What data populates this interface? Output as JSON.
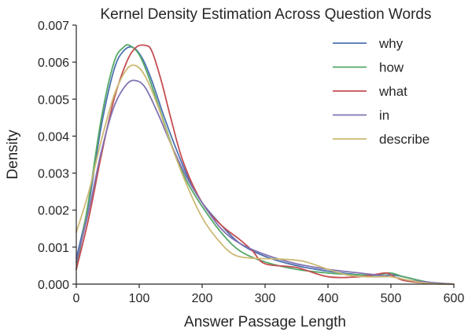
{
  "chart_data": {
    "type": "line",
    "title": "Kernel Density Estimation Across Question Words",
    "xlabel": "Answer Passage Length",
    "ylabel": "Density",
    "xlim": [
      0,
      600
    ],
    "ylim": [
      0,
      0.007
    ],
    "xticks": [
      "0",
      "100",
      "200",
      "300",
      "400",
      "500",
      "600"
    ],
    "yticks": [
      "0.000",
      "0.001",
      "0.002",
      "0.003",
      "0.004",
      "0.005",
      "0.006",
      "0.007"
    ],
    "grid": false,
    "legend_position": "top-right",
    "series": [
      {
        "name": "why",
        "color": "#4c72b0",
        "x": [
          0,
          20,
          40,
          60,
          75,
          90,
          105,
          120,
          140,
          160,
          180,
          200,
          230,
          260,
          300,
          350,
          400,
          450,
          480,
          500,
          520,
          560,
          600
        ],
        "y": [
          0.0007,
          0.0022,
          0.0043,
          0.0058,
          0.0063,
          0.0064,
          0.0061,
          0.0055,
          0.0045,
          0.0036,
          0.0028,
          0.0022,
          0.0016,
          0.0011,
          0.00075,
          0.0005,
          0.00035,
          0.00025,
          0.0002,
          0.00025,
          0.0002,
          5e-05,
          0.0
        ]
      },
      {
        "name": "how",
        "color": "#55a868",
        "x": [
          0,
          20,
          40,
          60,
          75,
          85,
          100,
          115,
          135,
          155,
          175,
          200,
          230,
          260,
          300,
          350,
          400,
          450,
          480,
          500,
          520,
          560,
          600
        ],
        "y": [
          0.0004,
          0.0023,
          0.0045,
          0.006,
          0.0064,
          0.00645,
          0.0062,
          0.0056,
          0.0046,
          0.0036,
          0.0028,
          0.0021,
          0.0014,
          0.0009,
          0.0006,
          0.0004,
          0.0003,
          0.00025,
          0.00025,
          0.0003,
          0.0002,
          5e-05,
          0.0
        ]
      },
      {
        "name": "what",
        "color": "#c44e52",
        "x": [
          0,
          20,
          40,
          60,
          80,
          95,
          110,
          120,
          135,
          150,
          170,
          200,
          230,
          260,
          280,
          300,
          350,
          400,
          450,
          490,
          500,
          520,
          560,
          600
        ],
        "y": [
          0.0004,
          0.0018,
          0.0035,
          0.005,
          0.006,
          0.0064,
          0.00645,
          0.0063,
          0.0055,
          0.0045,
          0.0033,
          0.0022,
          0.0016,
          0.0012,
          0.0009,
          0.00055,
          0.00045,
          0.0002,
          0.0002,
          0.0003,
          0.00025,
          0.0001,
          2e-05,
          0.0
        ]
      },
      {
        "name": "in",
        "color": "#8172b2",
        "x": [
          0,
          20,
          40,
          60,
          80,
          95,
          110,
          130,
          150,
          175,
          200,
          230,
          260,
          300,
          350,
          400,
          450,
          500,
          530,
          560,
          600
        ],
        "y": [
          0.0006,
          0.002,
          0.0036,
          0.0048,
          0.0054,
          0.0055,
          0.0053,
          0.0046,
          0.0038,
          0.0029,
          0.0022,
          0.0015,
          0.0011,
          0.0008,
          0.00055,
          0.0004,
          0.0003,
          0.0002,
          0.0001,
          5e-05,
          0.0
        ]
      },
      {
        "name": "describe",
        "color": "#ccb974",
        "x": [
          0,
          20,
          40,
          60,
          80,
          95,
          110,
          130,
          150,
          175,
          200,
          225,
          250,
          280,
          320,
          360,
          400,
          430,
          460,
          490,
          500,
          530,
          560,
          600
        ],
        "y": [
          0.0014,
          0.0025,
          0.0039,
          0.0051,
          0.0058,
          0.0059,
          0.0056,
          0.0048,
          0.0038,
          0.0027,
          0.0018,
          0.0012,
          0.0008,
          0.0007,
          0.00068,
          0.00062,
          0.0004,
          0.00025,
          0.0002,
          0.0002,
          0.0002,
          0.0001,
          2e-05,
          0.0
        ]
      }
    ]
  }
}
